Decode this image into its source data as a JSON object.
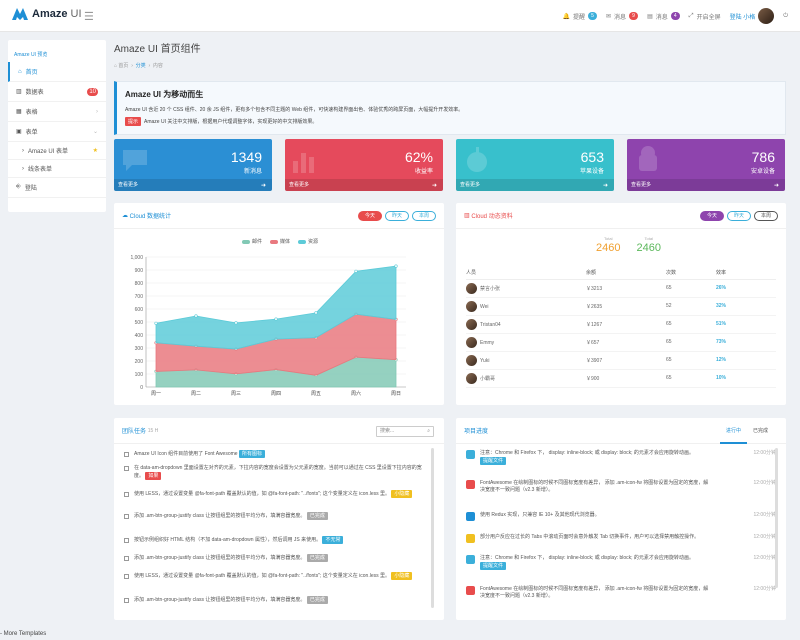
{
  "header": {
    "logo": "Amaze",
    "logo_sub": "UI",
    "nav": [
      {
        "label": "提醒",
        "badge": "5",
        "color": "#3bafda"
      },
      {
        "label": "消息",
        "badge": "9",
        "color": "#e84c4c"
      },
      {
        "label": "消息",
        "badge": "4",
        "color": "#8e44ad"
      },
      {
        "label": "开启全屏",
        "badge": "",
        "color": ""
      },
      {
        "label": "登陆 小格",
        "badge": "",
        "color": ""
      }
    ],
    "colors": {
      "accent": "#1e8fd5"
    }
  },
  "sidebar": {
    "title": "Amaze UI 预览",
    "items": [
      {
        "label": "首页",
        "icon": "home-icon",
        "badge": ""
      },
      {
        "label": "数据表",
        "icon": "chart-icon",
        "badge": "10"
      },
      {
        "label": "表格",
        "icon": "table-icon",
        "badge": ""
      },
      {
        "label": "表单",
        "icon": "form-icon",
        "badge": ""
      },
      {
        "label": "Amaze UI 表单",
        "icon": "",
        "badge": ""
      },
      {
        "label": "线条表单",
        "icon": "",
        "badge": ""
      },
      {
        "label": "登陆",
        "icon": "login-icon",
        "badge": ""
      }
    ]
  },
  "page": {
    "title": "Amaze UI 首页组件",
    "breadcrumb": [
      "首页",
      "分类",
      "内容"
    ]
  },
  "alert": {
    "title": "Amaze UI 为移动而生",
    "line1": "Amaze UI 含近 20 个 CSS 组件、20 余 JS 组件，更有多个包含不同主题的 Web 组件，可快速构建界面出色、体验优秀的跨屏页面，大幅提升开发效率。",
    "tag": "提示",
    "line2": "Amaze UI 关注中文排版，根据用户代理调整字体，实现更好的中文排版效果。"
  },
  "stats": [
    {
      "value": "1349",
      "label": "新消息",
      "more": "查看更多",
      "color": "#2b8fd4"
    },
    {
      "value": "62%",
      "label": "收益率",
      "more": "查看更多",
      "color": "#e54a5c"
    },
    {
      "value": "653",
      "label": "苹果设备",
      "more": "查看更多",
      "color": "#38c0cc"
    },
    {
      "value": "786",
      "label": "安卓设备",
      "more": "查看更多",
      "color": "#8e44ad"
    }
  ],
  "chart_panel": {
    "title": "Cloud 数据统计",
    "buttons": [
      "今天",
      "昨天",
      "本周"
    ]
  },
  "chart_data": {
    "type": "area",
    "categories": [
      "周一",
      "周二",
      "周三",
      "周四",
      "周五",
      "周六",
      "周日"
    ],
    "ylim": [
      0,
      1000
    ],
    "yticks": [
      "0",
      "100",
      "200",
      "300",
      "400",
      "500",
      "600",
      "700",
      "800",
      "900",
      "1,000"
    ],
    "series": [
      {
        "name": "邮件",
        "values": [
          120,
          132,
          101,
          134,
          90,
          230,
          210
        ],
        "color": "#82c9b5"
      },
      {
        "name": "媒体",
        "values": [
          220,
          182,
          191,
          234,
          290,
          330,
          310
        ],
        "color": "#e9797f"
      },
      {
        "name": "资源",
        "values": [
          150,
          232,
          201,
          154,
          190,
          330,
          410
        ],
        "color": "#5dcbd8"
      }
    ]
  },
  "cloud_panel": {
    "title": "Cloud 动态资料",
    "buttons": [
      "今天",
      "昨天",
      "本周"
    ],
    "totals": [
      {
        "label": "Total",
        "value": "2460",
        "color": "#f0a030"
      },
      {
        "label": "Total",
        "value": "2460",
        "color": "#5cb85c"
      }
    ],
    "columns": [
      "人员",
      "余额",
      "次数",
      "效率"
    ],
    "rows": [
      {
        "name": "禁言小张",
        "balance": "￥3213",
        "count": "65",
        "rate": "26%"
      },
      {
        "name": "Wei",
        "balance": "￥2635",
        "count": "52",
        "rate": "32%"
      },
      {
        "name": "Tristan04",
        "balance": "￥1267",
        "count": "65",
        "rate": "51%"
      },
      {
        "name": "Emmy",
        "balance": "￥657",
        "count": "65",
        "rate": "73%"
      },
      {
        "name": "Yuki",
        "balance": "￥3907",
        "count": "65",
        "rate": "12%"
      },
      {
        "name": "小霸哥",
        "balance": "￥900",
        "count": "65",
        "rate": "10%"
      }
    ]
  },
  "tasks": {
    "title": "团队任务",
    "count": "15 H",
    "search_placeholder": "搜索...",
    "items": [
      {
        "text": "Amaze UI Icon 组件目前使用了 Font Awesome",
        "tag": "所有图标",
        "tag_color": "#3bafda"
      },
      {
        "text": "在 data-am-dropdown 里面设置左对齐的元素，下拉内容的宽度会设置为父元素的宽度。当前可以通过在 CSS 里设置下拉内容的宽度。",
        "tag": "如果",
        "tag_color": "#e84c4c"
      },
      {
        "text": "使用 LESS，通过设置变量 @fa-font-path 覆盖默认的值，如 @fa-font-path: \"../fonts\"; 这个变量定义在 icon.less 里。",
        "tag": "小隐藏",
        "tag_color": "#f0c020"
      },
      {
        "text": "添加 .am-btn-group-justify class 让按钮组里的按钮平均分布，填满容器宽度。",
        "tag": "已完成",
        "tag_color": "#aaaaaa"
      },
      {
        "text": "按钮示例组织好 HTML 结构（不加 data-am-dropdown 属性），然后调用 JS 来使用。",
        "tag": "不无常",
        "tag_color": "#3bafda"
      },
      {
        "text": "添加 .am-btn-group-justify class 让按钮组里的按钮平均分布，填满容器宽度。",
        "tag": "已完成",
        "tag_color": "#aaaaaa"
      },
      {
        "text": "使用 LESS，通过设置变量 @fa-font-path 覆盖默认的值，如 @fa-font-path: \"../fonts\"; 这个变量定义在 icon.less 里。",
        "tag": "小隐藏",
        "tag_color": "#f0c020"
      },
      {
        "text": "添加 .am-btn-group-justify class 让按钮组里的按钮平均分布，填满容器宽度。",
        "tag": "已完成",
        "tag_color": "#aaaaaa"
      }
    ]
  },
  "timeline": {
    "title": "项目进度",
    "tabs": [
      "进行中",
      "已完成"
    ],
    "items": [
      {
        "text": "注意：Chrome 和 Firefox 下， display: inline-block; 或 display: block; 的元素才会应用旋转动画。",
        "time": "12:00分钟",
        "tag": "提醒文件",
        "color": "#3bafda"
      },
      {
        "text": "FontAwesome 在绘制图标的时候不同图标宽度有差异， 添加 .am-icon-fw 将图标设置为固定的宽度，解决宽度不一致问题（v2.3 新增）。",
        "time": "12:00分钟",
        "tag": "",
        "color": "#e84c4c"
      },
      {
        "text": "使用 Redux 实现，只兼容 IE 10+ 及其他现代浏览器。",
        "time": "12:00分钟",
        "tag": "",
        "color": "#1e8fd5"
      },
      {
        "text": "部分用户反应在过长的 Tabs 中滚动页面时会意外触发 Tab 切换事件，用户可以选择禁用触控操作。",
        "time": "12:00分钟",
        "tag": "",
        "color": "#f0c020"
      },
      {
        "text": "注意：Chrome 和 Firefox 下， display: inline-block; 或 display: block; 的元素才会应用旋转动画。",
        "time": "12:00分钟",
        "tag": "提醒文件",
        "color": "#3bafda"
      },
      {
        "text": "FontAwesome 在绘制图标的时候不同图标宽度有差异， 添加 .am-icon-fw 将图标设置为固定的宽度，解决宽度不一致问题（v2.3 新增）。",
        "time": "12:00分钟",
        "tag": "",
        "color": "#e84c4c"
      }
    ]
  },
  "footer": "- More Templates"
}
